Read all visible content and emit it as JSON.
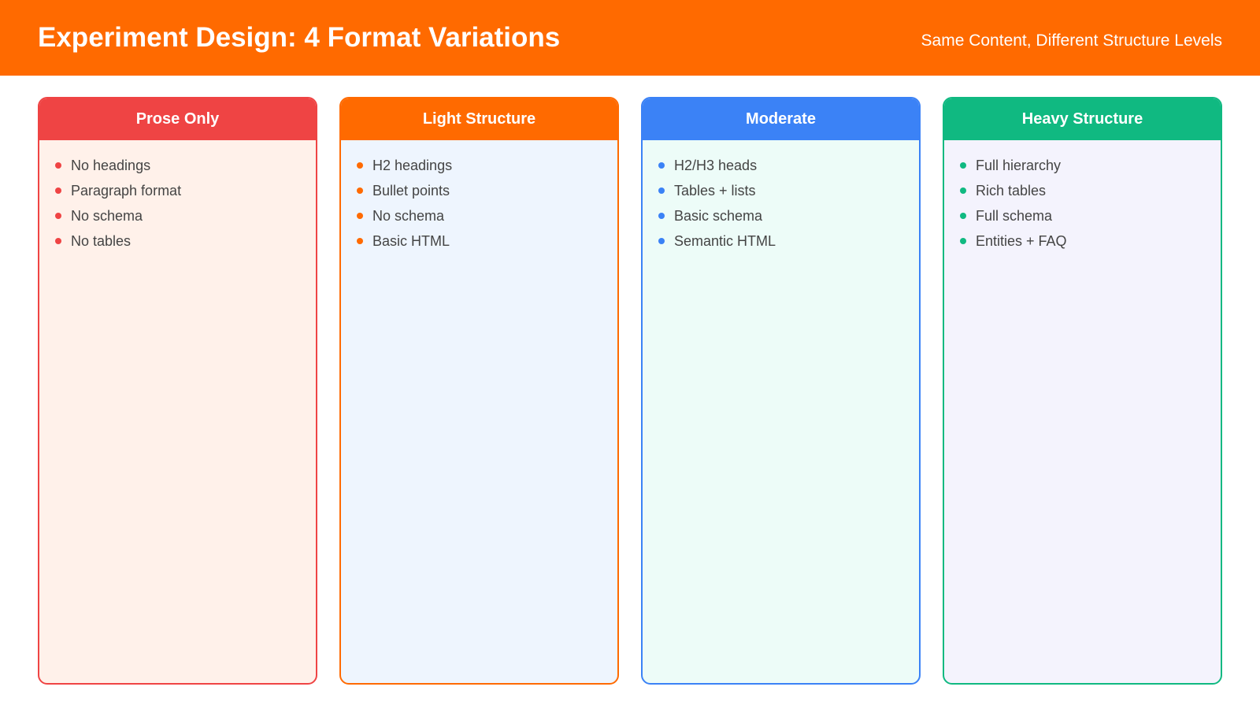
{
  "header": {
    "title": "Experiment Design: 4 Format Variations",
    "subtitle": "Same Content, Different Structure Levels",
    "color": "#ff6a00"
  },
  "cards": [
    {
      "title": "Prose Only",
      "color": "#ef4444",
      "bg": "#fff1ea",
      "items": [
        "No headings",
        "Paragraph format",
        "No schema",
        "No tables"
      ]
    },
    {
      "title": "Light Structure",
      "color": "#ff6a00",
      "bg": "#eef5fe",
      "items": [
        "H2 headings",
        "Bullet points",
        "No schema",
        "Basic HTML"
      ]
    },
    {
      "title": "Moderate",
      "color": "#3b82f6",
      "bg": "#edfcf8",
      "items": [
        "H2/H3 heads",
        "Tables + lists",
        "Basic schema",
        "Semantic HTML"
      ]
    },
    {
      "title": "Heavy Structure",
      "color": "#10b981",
      "bg": "#f4f3fd",
      "items": [
        "Full hierarchy",
        "Rich tables",
        "Full schema",
        "Entities + FAQ"
      ]
    }
  ]
}
